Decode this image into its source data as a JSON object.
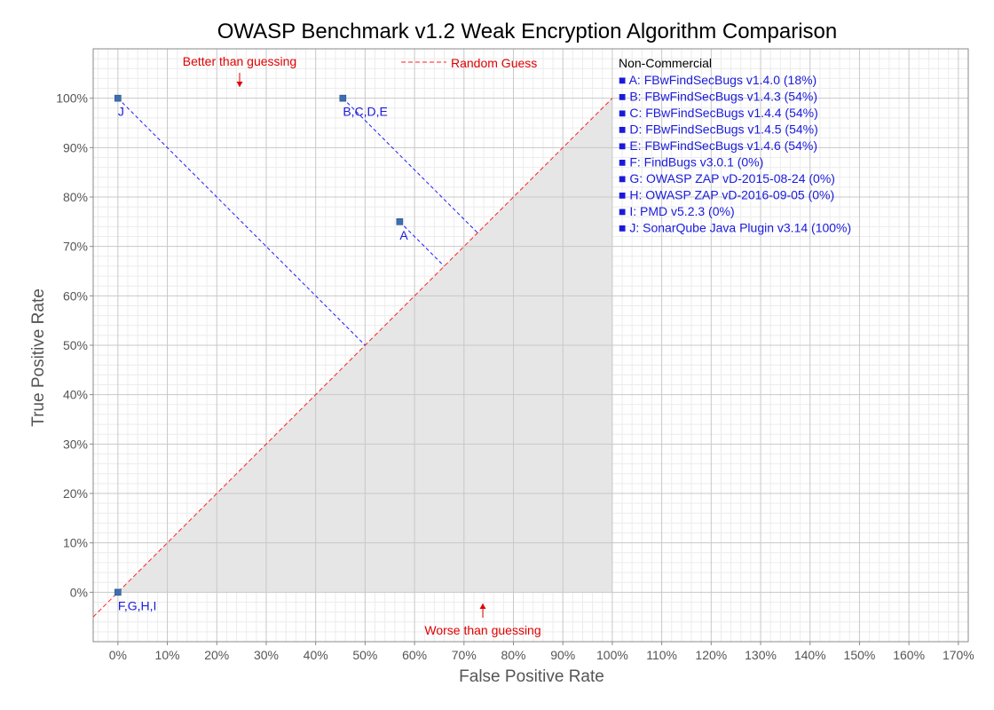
{
  "chart_data": {
    "type": "scatter",
    "title": "OWASP Benchmark v1.2 Weak Encryption Algorithm Comparison",
    "xlabel": "False Positive Rate",
    "ylabel": "True Positive Rate",
    "xlim": [
      -5,
      172
    ],
    "ylim": [
      -10,
      110
    ],
    "x_ticks": [
      0,
      10,
      20,
      30,
      40,
      50,
      60,
      70,
      80,
      90,
      100,
      110,
      120,
      130,
      140,
      150,
      160,
      170
    ],
    "y_ticks": [
      0,
      10,
      20,
      30,
      40,
      50,
      60,
      70,
      80,
      90,
      100
    ],
    "tick_suffix": "%",
    "grid": true,
    "points": [
      {
        "label": "J",
        "x": 0,
        "y": 100
      },
      {
        "label": "B,C,D,E",
        "x": 45.5,
        "y": 100
      },
      {
        "label": "A",
        "x": 57,
        "y": 75
      },
      {
        "label": "F,G,H,I",
        "x": 0,
        "y": 0
      }
    ],
    "reference_line": {
      "name": "Random Guess",
      "from": [
        -5,
        -5
      ],
      "to": [
        100,
        100
      ]
    },
    "annotations": {
      "better": "Better than guessing",
      "worse": "Worse than guessing"
    },
    "legend": {
      "heading": "Non-Commercial",
      "placement": "right",
      "marker": "■",
      "items": [
        "A: FBwFindSecBugs v1.4.0 (18%)",
        "B: FBwFindSecBugs v1.4.3 (54%)",
        "C: FBwFindSecBugs v1.4.4 (54%)",
        "D: FBwFindSecBugs v1.4.5 (54%)",
        "E: FBwFindSecBugs v1.4.6 (54%)",
        "F: FindBugs v3.0.1 (0%)",
        "G: OWASP ZAP vD-2015-08-24 (0%)",
        "H: OWASP ZAP vD-2016-09-05 (0%)",
        "I:  PMD v5.2.3 (0%)",
        "J: SonarQube Java Plugin v3.14 (100%)"
      ]
    },
    "colors": {
      "points": "#3d6fb0",
      "labels": "#1a1adb",
      "projection": "#1a1aff",
      "random_line": "#ff2020",
      "worse_region": "#e6e6e6",
      "annotations": "#e00000",
      "grid_major": "#c8c8c8",
      "grid_minor": "#ececec"
    }
  }
}
